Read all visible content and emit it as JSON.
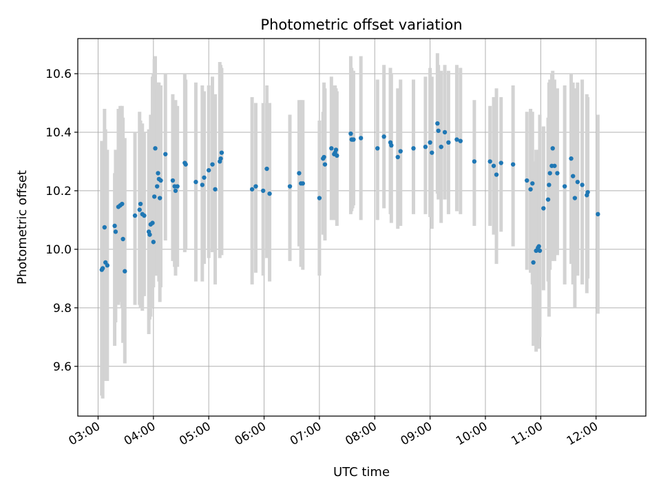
{
  "chart_data": {
    "type": "scatter",
    "title": "Photometric offset variation",
    "xlabel": "UTC time",
    "ylabel": "Photometric offset",
    "xlim": [
      "02:38",
      "12:54"
    ],
    "ylim": [
      9.43,
      10.72
    ],
    "x_ticks": [
      "03:00",
      "04:00",
      "05:00",
      "06:00",
      "07:00",
      "08:00",
      "09:00",
      "10:00",
      "11:00",
      "12:00"
    ],
    "y_ticks": [
      9.6,
      9.8,
      10.0,
      10.2,
      10.4,
      10.6
    ],
    "grid": true,
    "colors": {
      "points": "#1f77b4",
      "errorbars": "#d3d3d3",
      "grid": "#b0b0b0"
    },
    "points": [
      {
        "x": "03:04",
        "y": 9.93,
        "lo": 9.5,
        "hi": 10.37
      },
      {
        "x": "03:05",
        "y": 9.935,
        "lo": 9.49,
        "hi": 10.37
      },
      {
        "x": "03:07",
        "y": 10.075,
        "lo": 9.65,
        "hi": 10.48
      },
      {
        "x": "03:08",
        "y": 9.955,
        "lo": 9.55,
        "hi": 10.41
      },
      {
        "x": "03:10",
        "y": 9.945,
        "lo": 9.55,
        "hi": 10.34
      },
      {
        "x": "03:18",
        "y": 10.08,
        "lo": 9.67,
        "hi": 10.26
      },
      {
        "x": "03:19",
        "y": 10.06,
        "lo": 9.75,
        "hi": 10.34
      },
      {
        "x": "03:22",
        "y": 10.145,
        "lo": 9.81,
        "hi": 10.48
      },
      {
        "x": "03:24",
        "y": 10.15,
        "lo": 9.82,
        "hi": 10.49
      },
      {
        "x": "03:26",
        "y": 10.155,
        "lo": 9.8,
        "hi": 10.49
      },
      {
        "x": "03:27",
        "y": 10.035,
        "lo": 9.68,
        "hi": 10.45
      },
      {
        "x": "03:29",
        "y": 9.925,
        "lo": 9.61,
        "hi": 10.38
      },
      {
        "x": "03:40",
        "y": 10.115,
        "lo": 9.81,
        "hi": 10.4
      },
      {
        "x": "03:45",
        "y": 10.135,
        "lo": 9.81,
        "hi": 10.47
      },
      {
        "x": "03:46",
        "y": 10.155,
        "lo": 9.8,
        "hi": 10.44
      },
      {
        "x": "03:48",
        "y": 10.12,
        "lo": 9.79,
        "hi": 10.43
      },
      {
        "x": "03:50",
        "y": 10.115,
        "lo": 9.84,
        "hi": 10.4
      },
      {
        "x": "03:55",
        "y": 10.06,
        "lo": 9.71,
        "hi": 10.41
      },
      {
        "x": "03:56",
        "y": 10.05,
        "lo": 9.76,
        "hi": 10.38
      },
      {
        "x": "03:57",
        "y": 10.085,
        "lo": 9.77,
        "hi": 10.46
      },
      {
        "x": "03:59",
        "y": 10.09,
        "lo": 9.8,
        "hi": 10.59
      },
      {
        "x": "04:00",
        "y": 10.025,
        "lo": 9.87,
        "hi": 10.6
      },
      {
        "x": "04:01",
        "y": 10.18,
        "lo": 9.91,
        "hi": 10.65
      },
      {
        "x": "04:02",
        "y": 10.345,
        "lo": 9.95,
        "hi": 10.66
      },
      {
        "x": "04:04",
        "y": 10.215,
        "lo": 9.91,
        "hi": 10.55
      },
      {
        "x": "04:05",
        "y": 10.26,
        "lo": 9.91,
        "hi": 10.57
      },
      {
        "x": "04:06",
        "y": 10.24,
        "lo": 9.89,
        "hi": 10.57
      },
      {
        "x": "04:07",
        "y": 10.175,
        "lo": 9.82,
        "hi": 10.55
      },
      {
        "x": "04:08",
        "y": 10.235,
        "lo": 9.87,
        "hi": 10.56
      },
      {
        "x": "04:13",
        "y": 10.325,
        "lo": 10.03,
        "hi": 10.6
      },
      {
        "x": "04:21",
        "y": 10.235,
        "lo": 9.96,
        "hi": 10.53
      },
      {
        "x": "04:23",
        "y": 10.215,
        "lo": 9.94,
        "hi": 10.47
      },
      {
        "x": "04:24",
        "y": 10.2,
        "lo": 9.91,
        "hi": 10.51
      },
      {
        "x": "04:26",
        "y": 10.215,
        "lo": 9.94,
        "hi": 10.49
      },
      {
        "x": "04:34",
        "y": 10.295,
        "lo": 9.99,
        "hi": 10.6
      },
      {
        "x": "04:35",
        "y": 10.29,
        "lo": 10.0,
        "hi": 10.58
      },
      {
        "x": "04:46",
        "y": 10.23,
        "lo": 9.89,
        "hi": 10.57
      },
      {
        "x": "04:53",
        "y": 10.22,
        "lo": 9.89,
        "hi": 10.56
      },
      {
        "x": "04:55",
        "y": 10.245,
        "lo": 9.95,
        "hi": 10.54
      },
      {
        "x": "05:00",
        "y": 10.27,
        "lo": 9.97,
        "hi": 10.56
      },
      {
        "x": "05:04",
        "y": 10.29,
        "lo": 9.99,
        "hi": 10.59
      },
      {
        "x": "05:07",
        "y": 10.205,
        "lo": 9.88,
        "hi": 10.53
      },
      {
        "x": "05:12",
        "y": 10.3,
        "lo": 9.97,
        "hi": 10.64
      },
      {
        "x": "05:13",
        "y": 10.31,
        "lo": 10.0,
        "hi": 10.63
      },
      {
        "x": "05:14",
        "y": 10.33,
        "lo": 9.98,
        "hi": 10.62
      },
      {
        "x": "05:47",
        "y": 10.205,
        "lo": 9.88,
        "hi": 10.52
      },
      {
        "x": "05:51",
        "y": 10.215,
        "lo": 9.92,
        "hi": 10.5
      },
      {
        "x": "05:59",
        "y": 10.2,
        "lo": 9.91,
        "hi": 10.5
      },
      {
        "x": "06:03",
        "y": 10.275,
        "lo": 9.97,
        "hi": 10.56
      },
      {
        "x": "06:06",
        "y": 10.19,
        "lo": 9.89,
        "hi": 10.5
      },
      {
        "x": "06:28",
        "y": 10.215,
        "lo": 9.96,
        "hi": 10.46
      },
      {
        "x": "06:38",
        "y": 10.26,
        "lo": 10.01,
        "hi": 10.51
      },
      {
        "x": "06:40",
        "y": 10.225,
        "lo": 9.94,
        "hi": 10.51
      },
      {
        "x": "06:42",
        "y": 10.225,
        "lo": 9.93,
        "hi": 10.51
      },
      {
        "x": "07:00",
        "y": 10.175,
        "lo": 9.91,
        "hi": 10.44
      },
      {
        "x": "07:04",
        "y": 10.31,
        "lo": 10.05,
        "hi": 10.47
      },
      {
        "x": "07:05",
        "y": 10.315,
        "lo": 10.05,
        "hi": 10.57
      },
      {
        "x": "07:06",
        "y": 10.29,
        "lo": 10.03,
        "hi": 10.55
      },
      {
        "x": "07:13",
        "y": 10.345,
        "lo": 10.1,
        "hi": 10.59
      },
      {
        "x": "07:16",
        "y": 10.325,
        "lo": 10.1,
        "hi": 10.56
      },
      {
        "x": "07:17",
        "y": 10.33,
        "lo": 10.12,
        "hi": 10.56
      },
      {
        "x": "07:18",
        "y": 10.34,
        "lo": 10.1,
        "hi": 10.55
      },
      {
        "x": "07:19",
        "y": 10.32,
        "lo": 10.08,
        "hi": 10.54
      },
      {
        "x": "07:34",
        "y": 10.395,
        "lo": 10.12,
        "hi": 10.66
      },
      {
        "x": "07:35",
        "y": 10.375,
        "lo": 10.13,
        "hi": 10.62
      },
      {
        "x": "07:36",
        "y": 10.375,
        "lo": 10.14,
        "hi": 10.61
      },
      {
        "x": "07:37",
        "y": 10.375,
        "lo": 10.15,
        "hi": 10.61
      },
      {
        "x": "07:45",
        "y": 10.38,
        "lo": 10.1,
        "hi": 10.66
      },
      {
        "x": "08:03",
        "y": 10.345,
        "lo": 10.1,
        "hi": 10.58
      },
      {
        "x": "08:10",
        "y": 10.385,
        "lo": 10.14,
        "hi": 10.63
      },
      {
        "x": "08:17",
        "y": 10.365,
        "lo": 10.12,
        "hi": 10.62
      },
      {
        "x": "08:18",
        "y": 10.355,
        "lo": 10.09,
        "hi": 10.6
      },
      {
        "x": "08:25",
        "y": 10.315,
        "lo": 10.07,
        "hi": 10.55
      },
      {
        "x": "08:28",
        "y": 10.335,
        "lo": 10.08,
        "hi": 10.58
      },
      {
        "x": "08:42",
        "y": 10.345,
        "lo": 10.12,
        "hi": 10.58
      },
      {
        "x": "08:55",
        "y": 10.35,
        "lo": 10.12,
        "hi": 10.59
      },
      {
        "x": "09:00",
        "y": 10.365,
        "lo": 10.11,
        "hi": 10.62
      },
      {
        "x": "09:02",
        "y": 10.33,
        "lo": 10.07,
        "hi": 10.59
      },
      {
        "x": "09:08",
        "y": 10.43,
        "lo": 10.19,
        "hi": 10.67
      },
      {
        "x": "09:09",
        "y": 10.405,
        "lo": 10.17,
        "hi": 10.63
      },
      {
        "x": "09:12",
        "y": 10.35,
        "lo": 10.09,
        "hi": 10.61
      },
      {
        "x": "09:16",
        "y": 10.4,
        "lo": 10.17,
        "hi": 10.63
      },
      {
        "x": "09:20",
        "y": 10.365,
        "lo": 10.12,
        "hi": 10.61
      },
      {
        "x": "09:29",
        "y": 10.375,
        "lo": 10.13,
        "hi": 10.63
      },
      {
        "x": "09:33",
        "y": 10.37,
        "lo": 10.12,
        "hi": 10.62
      },
      {
        "x": "09:48",
        "y": 10.3,
        "lo": 10.08,
        "hi": 10.51
      },
      {
        "x": "10:05",
        "y": 10.3,
        "lo": 10.08,
        "hi": 10.49
      },
      {
        "x": "10:09",
        "y": 10.285,
        "lo": 10.05,
        "hi": 10.52
      },
      {
        "x": "10:12",
        "y": 10.255,
        "lo": 9.95,
        "hi": 10.55
      },
      {
        "x": "10:17",
        "y": 10.295,
        "lo": 10.06,
        "hi": 10.52
      },
      {
        "x": "10:30",
        "y": 10.29,
        "lo": 10.01,
        "hi": 10.56
      },
      {
        "x": "10:45",
        "y": 10.235,
        "lo": 9.93,
        "hi": 10.47
      },
      {
        "x": "10:49",
        "y": 10.205,
        "lo": 9.92,
        "hi": 10.48
      },
      {
        "x": "10:51",
        "y": 10.225,
        "lo": 9.88,
        "hi": 10.47
      },
      {
        "x": "10:52",
        "y": 9.955,
        "lo": 9.67,
        "hi": 10.3
      },
      {
        "x": "10:55",
        "y": 9.995,
        "lo": 9.65,
        "hi": 10.34
      },
      {
        "x": "10:57",
        "y": 10.005,
        "lo": 9.67,
        "hi": 10.33
      },
      {
        "x": "10:58",
        "y": 10.01,
        "lo": 9.66,
        "hi": 10.34
      },
      {
        "x": "10:59",
        "y": 9.995,
        "lo": 9.7,
        "hi": 10.46
      },
      {
        "x": "11:03",
        "y": 10.14,
        "lo": 9.86,
        "hi": 10.42
      },
      {
        "x": "11:08",
        "y": 10.17,
        "lo": 9.89,
        "hi": 10.45
      },
      {
        "x": "11:09",
        "y": 10.22,
        "lo": 9.77,
        "hi": 10.57
      },
      {
        "x": "11:10",
        "y": 10.26,
        "lo": 9.93,
        "hi": 10.58
      },
      {
        "x": "11:12",
        "y": 10.285,
        "lo": 9.96,
        "hi": 10.6
      },
      {
        "x": "11:13",
        "y": 10.345,
        "lo": 10.0,
        "hi": 10.61
      },
      {
        "x": "11:15",
        "y": 10.285,
        "lo": 9.96,
        "hi": 10.58
      },
      {
        "x": "11:18",
        "y": 10.26,
        "lo": 9.98,
        "hi": 10.55
      },
      {
        "x": "11:26",
        "y": 10.215,
        "lo": 9.88,
        "hi": 10.56
      },
      {
        "x": "11:33",
        "y": 10.31,
        "lo": 9.95,
        "hi": 10.6
      },
      {
        "x": "11:35",
        "y": 10.25,
        "lo": 9.88,
        "hi": 10.57
      },
      {
        "x": "11:37",
        "y": 10.175,
        "lo": 9.8,
        "hi": 10.55
      },
      {
        "x": "11:40",
        "y": 10.23,
        "lo": 9.91,
        "hi": 10.57
      },
      {
        "x": "11:45",
        "y": 10.22,
        "lo": 9.88,
        "hi": 10.58
      },
      {
        "x": "11:50",
        "y": 10.185,
        "lo": 9.85,
        "hi": 10.53
      },
      {
        "x": "11:51",
        "y": 10.195,
        "lo": 9.9,
        "hi": 10.52
      },
      {
        "x": "12:02",
        "y": 10.12,
        "lo": 9.78,
        "hi": 10.46
      }
    ]
  }
}
